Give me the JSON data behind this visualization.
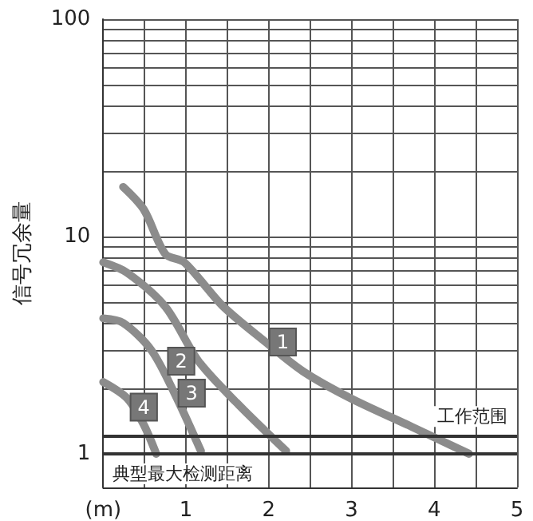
{
  "chart_data": {
    "type": "line",
    "ylabel": "信号冗余量",
    "log": "y",
    "grid": true,
    "legend": false,
    "marker": "none",
    "line_style": "solid",
    "xlim": [
      0,
      5
    ],
    "xticks": [
      {
        "value": 0,
        "label": "(m)"
      },
      {
        "value": 0.5,
        "label": null
      },
      1,
      {
        "value": 1.5,
        "label": null
      },
      2,
      {
        "value": 2.5,
        "label": null
      },
      3,
      {
        "value": 3.5,
        "label": null
      },
      4,
      {
        "value": 4.5,
        "label": null
      },
      5
    ],
    "ylim": [
      0.7,
      100
    ],
    "yticks": [
      1,
      {
        "value": 2,
        "label": null
      },
      {
        "value": 3,
        "label": null
      },
      {
        "value": 4,
        "label": null
      },
      {
        "value": 5,
        "label": null
      },
      {
        "value": 6,
        "label": null
      },
      {
        "value": 7,
        "label": null
      },
      {
        "value": 8,
        "label": null
      },
      {
        "value": 9,
        "label": null
      },
      10,
      {
        "value": 20,
        "label": null
      },
      {
        "value": 30,
        "label": null
      },
      {
        "value": 40,
        "label": null
      },
      {
        "value": 50,
        "label": null
      },
      {
        "value": 60,
        "label": null
      },
      {
        "value": 70,
        "label": null
      },
      {
        "value": 80,
        "label": null
      },
      {
        "value": 90,
        "label": null
      },
      100
    ],
    "series": [
      {
        "name": "1",
        "color": "#8c8c8c",
        "x": [
          0.24,
          0.49,
          0.75,
          0.98,
          1.44,
          1.96,
          2.41,
          2.99,
          3.73,
          4.42
        ],
        "values": [
          16.9,
          13.3,
          8.3,
          7.6,
          4.8,
          3.27,
          2.4,
          1.8,
          1.33,
          1.0
        ]
      },
      {
        "name": "2",
        "color": "#8c8c8c",
        "x": [
          0,
          0.29,
          0.75,
          1.15,
          1.61,
          2.21
        ],
        "values": [
          7.6,
          6.8,
          4.75,
          2.67,
          1.72,
          1.03
        ]
      },
      {
        "name": "3",
        "color": "#8c8c8c",
        "x": [
          0,
          0.24,
          0.58,
          0.86,
          1.18
        ],
        "values": [
          4.2,
          4.0,
          3.0,
          1.9,
          1.03
        ]
      },
      {
        "name": "4",
        "color": "#8c8c8c",
        "x": [
          0,
          0.29,
          0.49,
          0.64
        ],
        "values": [
          2.14,
          1.8,
          1.36,
          1.0
        ]
      }
    ],
    "ref_lines": [
      {
        "axis": "y",
        "value": 1.2,
        "label": "工作范围",
        "color": "#333333"
      },
      {
        "axis": "y",
        "value": 1,
        "label": "典型最大检测距离",
        "color": "#333333"
      }
    ]
  }
}
